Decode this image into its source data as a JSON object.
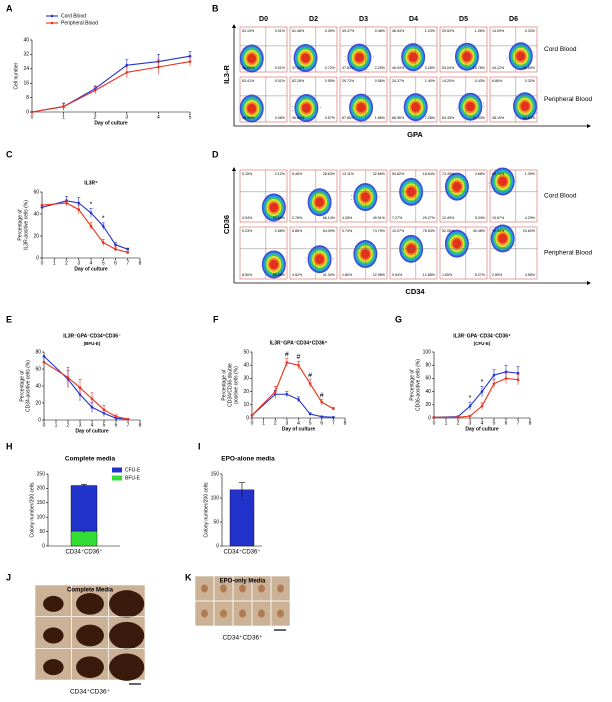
{
  "panel_labels": [
    "A",
    "B",
    "C",
    "D",
    "E",
    "F",
    "G",
    "H",
    "I",
    "J",
    "K"
  ],
  "chart_data": [
    {
      "type": "line",
      "y_label": "Cell number",
      "x_label": "Day of culture",
      "x": [
        0,
        1,
        2,
        3,
        4,
        5
      ],
      "xlim": [
        0,
        5
      ],
      "xticks": [
        0,
        1,
        2,
        3,
        4,
        5
      ],
      "ylim": [
        0,
        40
      ],
      "yticks": [
        0,
        8,
        16,
        24,
        32,
        40
      ],
      "legend": "upper left",
      "series": [
        {
          "name": "Cord Blood",
          "color": "#2233cc",
          "values": [
            0,
            3,
            13,
            26,
            28,
            31
          ],
          "errors": [
            0,
            2,
            1.5,
            3,
            4,
            2.5
          ]
        },
        {
          "name": "Peripheral Blood",
          "color": "#e8321c",
          "values": [
            0,
            3,
            12,
            22,
            25,
            28
          ],
          "errors": [
            0,
            1.5,
            2,
            3,
            4,
            2.5
          ]
        }
      ]
    },
    {
      "type": "line",
      "title": "IL3R⁺",
      "y_label": [
        "Percentage of",
        "IL3R-positive cells (%)"
      ],
      "x_label": "Day of culture",
      "x": [
        0,
        2,
        3,
        4,
        5,
        6,
        7
      ],
      "xlim": [
        0,
        8
      ],
      "xticks": [
        0,
        1,
        2,
        3,
        4,
        5,
        6,
        7,
        8
      ],
      "ylim": [
        0,
        60
      ],
      "yticks": [
        0,
        20,
        40,
        60
      ],
      "series": [
        {
          "color": "#2233cc",
          "values": [
            46,
            52,
            50,
            41,
            29,
            12,
            8
          ],
          "errors": [
            0,
            4,
            5,
            4,
            3,
            2,
            1
          ]
        },
        {
          "color": "#e8321c",
          "values": [
            48,
            50,
            44,
            29,
            14,
            8,
            5
          ],
          "errors": [
            0,
            3,
            4,
            3,
            3,
            2,
            1
          ]
        }
      ],
      "annotations": [
        {
          "text": "*",
          "x": 4
        },
        {
          "text": "*",
          "x": 5
        }
      ]
    },
    {
      "type": "line",
      "title": "IL3R⁻GPA⁻CD34⁺CD36⁻",
      "subtitle": "(BFU-E)",
      "y_label": [
        "Percentage of",
        "CD34-positive cells (%)"
      ],
      "x_label": "Day of culture",
      "x": [
        0,
        2,
        3,
        4,
        5,
        6,
        7
      ],
      "xlim": [
        0,
        8
      ],
      "xticks": [
        0,
        1,
        2,
        3,
        4,
        5,
        6,
        7,
        8
      ],
      "ylim": [
        0,
        80
      ],
      "yticks": [
        0,
        20,
        40,
        60,
        80
      ],
      "series": [
        {
          "color": "#2233cc",
          "values": [
            75,
            48,
            30,
            15,
            8,
            2,
            1
          ],
          "errors": [
            0,
            10,
            8,
            6,
            4,
            2,
            1
          ]
        },
        {
          "color": "#e8321c",
          "values": [
            68,
            50,
            38,
            25,
            12,
            4,
            1
          ],
          "errors": [
            0,
            12,
            10,
            7,
            5,
            2,
            1
          ]
        }
      ]
    },
    {
      "type": "line",
      "title": "IL3R⁻GPA⁻CD34⁺CD36⁺",
      "y_label": [
        "Percentage of",
        "CD34/CD36-double",
        "positive cells (%)"
      ],
      "x_label": "Day of culture",
      "x": [
        0,
        2,
        3,
        4,
        5,
        6,
        7
      ],
      "xlim": [
        0,
        8
      ],
      "xticks": [
        0,
        1,
        2,
        3,
        4,
        5,
        6,
        7,
        8
      ],
      "ylim": [
        0,
        50
      ],
      "yticks": [
        0,
        10,
        20,
        30,
        40,
        50
      ],
      "series": [
        {
          "color": "#2233cc",
          "values": [
            2,
            18,
            18,
            14,
            3,
            1,
            0.5
          ],
          "errors": [
            0,
            3,
            2,
            2,
            1,
            0.5,
            0.3
          ]
        },
        {
          "color": "#e8321c",
          "values": [
            2,
            20,
            42,
            40,
            26,
            12,
            7
          ],
          "errors": [
            0,
            4,
            3,
            3,
            3,
            2,
            1
          ]
        }
      ],
      "annotations": [
        {
          "text": "#",
          "x": 3
        },
        {
          "text": "#",
          "x": 4
        },
        {
          "text": "#",
          "x": 5
        },
        {
          "text": "#",
          "x": 6
        }
      ]
    },
    {
      "type": "line",
      "title": "IL3R⁻GPA⁻CD34⁻CD36⁺",
      "subtitle": "(CFU-E)",
      "y_label": [
        "Percentage of",
        "CD36-positive cells (%)"
      ],
      "x_label": "Day of culture",
      "x": [
        0,
        2,
        3,
        4,
        5,
        6,
        7
      ],
      "xlim": [
        0,
        8
      ],
      "xticks": [
        0,
        1,
        2,
        3,
        4,
        5,
        6,
        7,
        8
      ],
      "ylim": [
        0,
        100
      ],
      "yticks": [
        0,
        20,
        40,
        60,
        80,
        100
      ],
      "series": [
        {
          "color": "#2233cc",
          "values": [
            1,
            2,
            18,
            40,
            65,
            70,
            68
          ],
          "errors": [
            0,
            1,
            6,
            8,
            8,
            10,
            10
          ]
        },
        {
          "color": "#e8321c",
          "values": [
            1,
            1,
            3,
            18,
            52,
            60,
            58
          ],
          "errors": [
            0,
            0.5,
            1,
            5,
            6,
            8,
            8
          ]
        }
      ],
      "annotations": [
        {
          "text": "*",
          "x": 3
        },
        {
          "text": "*",
          "x": 4
        }
      ]
    },
    {
      "type": "bar",
      "stacked": true,
      "title": "Complete media",
      "y_label": "Colony number/200 cells",
      "categories": [
        "CD34⁺CD36⁺"
      ],
      "ylim": [
        0,
        250
      ],
      "yticks": [
        0,
        50,
        100,
        150,
        200,
        250
      ],
      "series": [
        {
          "name": "CFU-E",
          "color": "#2233cc",
          "values": [
            158
          ],
          "errors": [
            4
          ]
        },
        {
          "name": "BFU-E",
          "color": "#33dd33",
          "values": [
            52
          ],
          "errors": [
            6
          ]
        }
      ]
    },
    {
      "type": "bar",
      "title": "EPO-alone media",
      "y_label": "Colony number/200 cells",
      "categories": [
        "CD34⁺CD36⁺"
      ],
      "ylim": [
        0,
        150
      ],
      "yticks": [
        0,
        50,
        100,
        150
      ],
      "series": [
        {
          "color": "#2233cc",
          "values": [
            117
          ],
          "errors": [
            15
          ]
        }
      ]
    }
  ],
  "flow_B": {
    "x_label": "GPA",
    "y_label": "IL3-R",
    "columns": [
      "D0",
      "D2",
      "D3",
      "D4",
      "D5",
      "D6"
    ],
    "rows": [
      {
        "name": "Cord Blood",
        "cells": [
          [
            "53.15%",
            "0.01%",
            "46.83%",
            "0.01%"
          ],
          [
            "61.48%",
            "0.39%",
            "37.43%",
            "0.72%"
          ],
          [
            "49.47%",
            "0.48%",
            "47.81%",
            "2.25%"
          ],
          [
            "46.54%",
            "1.24%",
            "46.94%",
            "5.28%"
          ],
          [
            "29.52%",
            "1.06%",
            "53.04%",
            "15.78%"
          ],
          [
            "14.09%",
            "0.33%",
            "44.12%",
            "41.50%"
          ]
        ]
      },
      {
        "name": "Peripheral Blood",
        "cells": [
          [
            "63.41%",
            "0.01%",
            "36.50%",
            "0.08%"
          ],
          [
            "62.28%",
            "0.55%",
            "36.63%",
            "0.57%"
          ],
          [
            "29.72%",
            "0.58%",
            "67.85%",
            "1.86%"
          ],
          [
            "24.37%",
            "1.40%",
            "66.96%",
            "7.28%"
          ],
          [
            "14.20%",
            "0.43%",
            "63.45%",
            "21.93%"
          ],
          [
            "6.86%",
            "0.32%",
            "38.19%",
            "54.54%"
          ]
        ]
      }
    ]
  },
  "flow_D": {
    "x_label": "CD34",
    "y_label": "CD36",
    "rows": [
      {
        "name": "Cord Blood",
        "cells": [
          [
            "0.15%",
            "2.12%",
            "4.04%",
            "93.69%"
          ],
          [
            "5.46%",
            "28.63%",
            "2.76%",
            "66.14%"
          ],
          [
            "13.11%",
            "32.66%",
            "4.28%",
            "49.91%"
          ],
          [
            "54.82%",
            "18.64%",
            "7.27%",
            "29.27%"
          ],
          [
            "73.49%",
            "4.68%",
            "12.49%",
            "9.34%"
          ],
          [
            "83.75%",
            "1.09%",
            "10.67%",
            "4.29%"
          ]
        ]
      },
      {
        "name": "Peripheral Blood",
        "cells": [
          [
            "0.23%",
            "2.68%",
            "8.50%",
            "88.58%"
          ],
          [
            "5.86%",
            "54.09%",
            "4.52%",
            "41.30%"
          ],
          [
            "0.74%",
            "74.79%",
            "1.80%",
            "22.98%"
          ],
          [
            "10.07%",
            "76.53%",
            "0.54%",
            "12.88%"
          ],
          [
            "52.06%",
            "40.48%",
            "1.65%",
            "5.27%"
          ],
          [
            "70.34%",
            "23.60%",
            "2.50%",
            "3.56%"
          ]
        ]
      }
    ]
  },
  "images": {
    "J": {
      "title": "Complete Media",
      "caption": "CD34⁺CD36⁺"
    },
    "K": {
      "title": "EPO-only  Media",
      "caption": "CD34⁺CD36⁺"
    }
  }
}
